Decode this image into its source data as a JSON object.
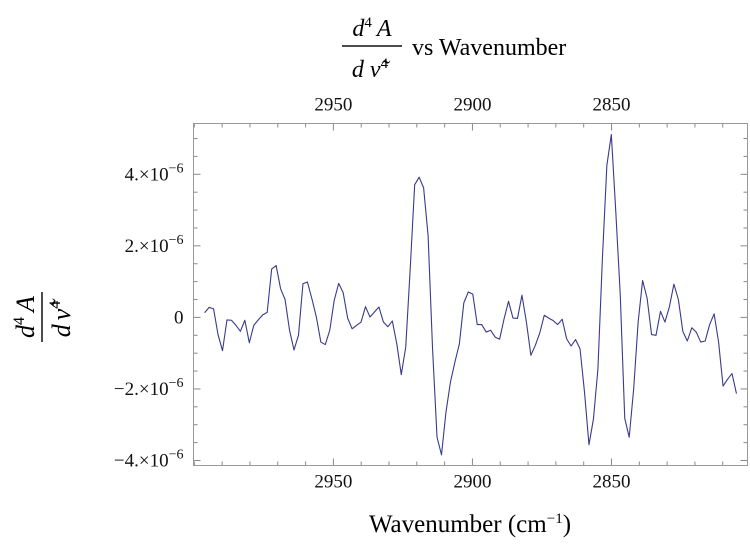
{
  "chart_data": {
    "type": "line",
    "title": {
      "num_d": "d",
      "num_exp": "4",
      "num_var": "A",
      "den_d": "d",
      "den_var": "ν̃",
      "den_exp": "4",
      "suffix": "vs Wavenumber"
    },
    "ylabel": {
      "num_d": "d",
      "num_exp": "4",
      "num_var": "A",
      "den_d": "d",
      "den_var": "ν̃",
      "den_exp": "4"
    },
    "xlabel": {
      "text": "Wavenumber (cm",
      "exp": "−1",
      "close": ")"
    },
    "xlim": [
      3000.3,
      2801.1
    ],
    "ylim": [
      -4.14e-06,
      5.42e-06
    ],
    "x_reversed": true,
    "xticks": [
      {
        "value": 2950,
        "label": "2950"
      },
      {
        "value": 2900,
        "label": "2900"
      },
      {
        "value": 2850,
        "label": "2850"
      }
    ],
    "x_minor_step": 10,
    "yticks": [
      {
        "value": 4e-06,
        "mantissa": "4.",
        "times": "×10",
        "exp": "−6"
      },
      {
        "value": 2e-06,
        "mantissa": "2.",
        "times": "×10",
        "exp": "−6"
      },
      {
        "value": 0,
        "mantissa": "0",
        "times": "",
        "exp": ""
      },
      {
        "value": -2e-06,
        "mantissa": "−2.",
        "times": "×10",
        "exp": "−6"
      },
      {
        "value": -4e-06,
        "mantissa": "−4.",
        "times": "×10",
        "exp": "−6"
      }
    ],
    "y_minor_step": 5e-07,
    "grid": false,
    "series": [
      {
        "name": "d4A/dv4",
        "color": "#3a3a8c",
        "x_start": 2996.3,
        "x_step": -1.607,
        "y_scale": 1e-06,
        "y": [
          0.13,
          0.28,
          0.24,
          -0.48,
          -0.93,
          -0.07,
          -0.08,
          -0.22,
          -0.39,
          -0.08,
          -0.71,
          -0.22,
          -0.07,
          0.07,
          0.14,
          1.35,
          1.45,
          0.8,
          0.5,
          -0.36,
          -0.91,
          -0.5,
          0.94,
          0.99,
          0.52,
          0.01,
          -0.69,
          -0.76,
          -0.36,
          0.48,
          0.95,
          0.69,
          -0.02,
          -0.32,
          -0.22,
          -0.13,
          0.3,
          0.01,
          0.15,
          0.29,
          -0.13,
          -0.26,
          -0.1,
          -0.74,
          -1.6,
          -0.83,
          1.36,
          3.71,
          3.92,
          3.62,
          2.29,
          -0.88,
          -3.35,
          -3.84,
          -2.65,
          -1.81,
          -1.25,
          -0.74,
          0.41,
          0.71,
          0.65,
          -0.2,
          -0.2,
          -0.41,
          -0.36,
          -0.55,
          -0.61,
          -0.04,
          0.45,
          -0.02,
          -0.03,
          0.62,
          -0.13,
          -1.06,
          -0.78,
          -0.43,
          0.06,
          -0.02,
          -0.09,
          -0.2,
          -0.05,
          -0.6,
          -0.8,
          -0.62,
          -0.88,
          -2.09,
          -3.56,
          -2.84,
          -1.44,
          1.64,
          4.25,
          5.11,
          2.95,
          0.62,
          -2.82,
          -3.35,
          -2.0,
          -0.13,
          1.03,
          0.54,
          -0.48,
          -0.5,
          0.17,
          -0.13,
          0.3,
          0.93,
          0.5,
          -0.39,
          -0.66,
          -0.29,
          -0.41,
          -0.69,
          -0.66,
          -0.2,
          0.1,
          -0.69,
          -1.92,
          -1.73,
          -1.57,
          -2.13
        ]
      }
    ]
  }
}
